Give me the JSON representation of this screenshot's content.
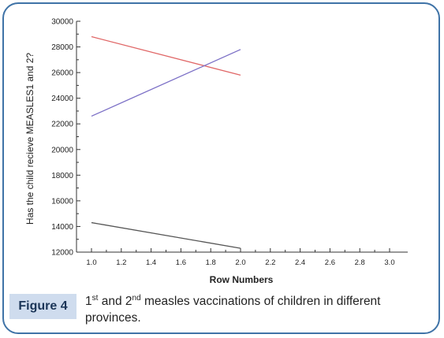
{
  "chart_data": {
    "type": "line",
    "ylabel": "Has the child recieve MEASLES1 and 2?",
    "xlabel": "Row Numbers",
    "xlim": [
      1.0,
      3.0
    ],
    "ylim": [
      12000,
      30000
    ],
    "xticks": [
      "1.0",
      "1.2",
      "1.4",
      "1.6",
      "1.8",
      "2.0",
      "2.2",
      "2.4",
      "2.6",
      "2.8",
      "3.0"
    ],
    "yticks": [
      "12000",
      "14000",
      "16000",
      "18000",
      "20000",
      "22000",
      "24000",
      "26000",
      "28000",
      "30000"
    ],
    "grid": false,
    "series": [
      {
        "color": "#e06666",
        "x": [
          1.0,
          2.0
        ],
        "y": [
          28800,
          25800
        ]
      },
      {
        "color": "#7b6fc6",
        "x": [
          1.0,
          2.0
        ],
        "y": [
          22600,
          27800
        ]
      },
      {
        "color": "#555555",
        "x": [
          1.0,
          2.0
        ],
        "y": [
          14300,
          12300
        ]
      }
    ]
  },
  "caption": {
    "label": "Figure 4",
    "n1": "1",
    "sup1": "st",
    "and": " and 2",
    "sup2": "nd",
    "text": " measles vaccinations of children in different provinces."
  }
}
